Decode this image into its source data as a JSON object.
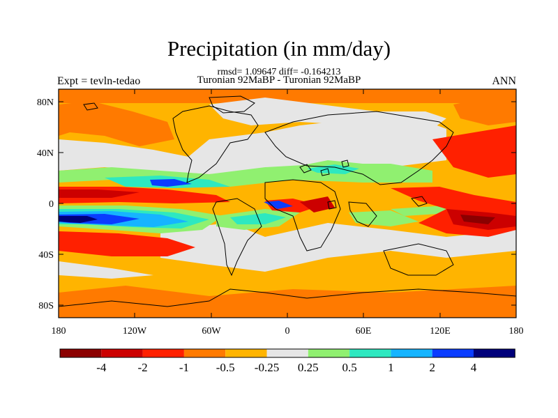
{
  "title": "Precipitation (in mm/day)",
  "stats_line": "rmsd= 1.09647 diff= -0.164213",
  "comparison": "Turonian  92MaBP - Turonian  92MaBP",
  "experiment": "Expt = tevln-tedao",
  "season": "ANN",
  "axes": {
    "lat_labels": [
      "80N",
      "40N",
      "0",
      "40S",
      "80S"
    ],
    "lon_labels": [
      "180",
      "120W",
      "60W",
      "0",
      "60E",
      "120E",
      "180"
    ]
  },
  "colorbar": {
    "colors": [
      "#8b0000",
      "#cc0000",
      "#ff2000",
      "#ff7a00",
      "#ffb400",
      "#e6e6e6",
      "#90f070",
      "#2ee8c0",
      "#16b4ff",
      "#0a3cff",
      "#00007a"
    ],
    "labels": [
      "-4",
      "-2",
      "-1",
      "-0.5",
      "-0.25",
      "0.25",
      "0.5",
      "1",
      "2",
      "4"
    ]
  }
}
